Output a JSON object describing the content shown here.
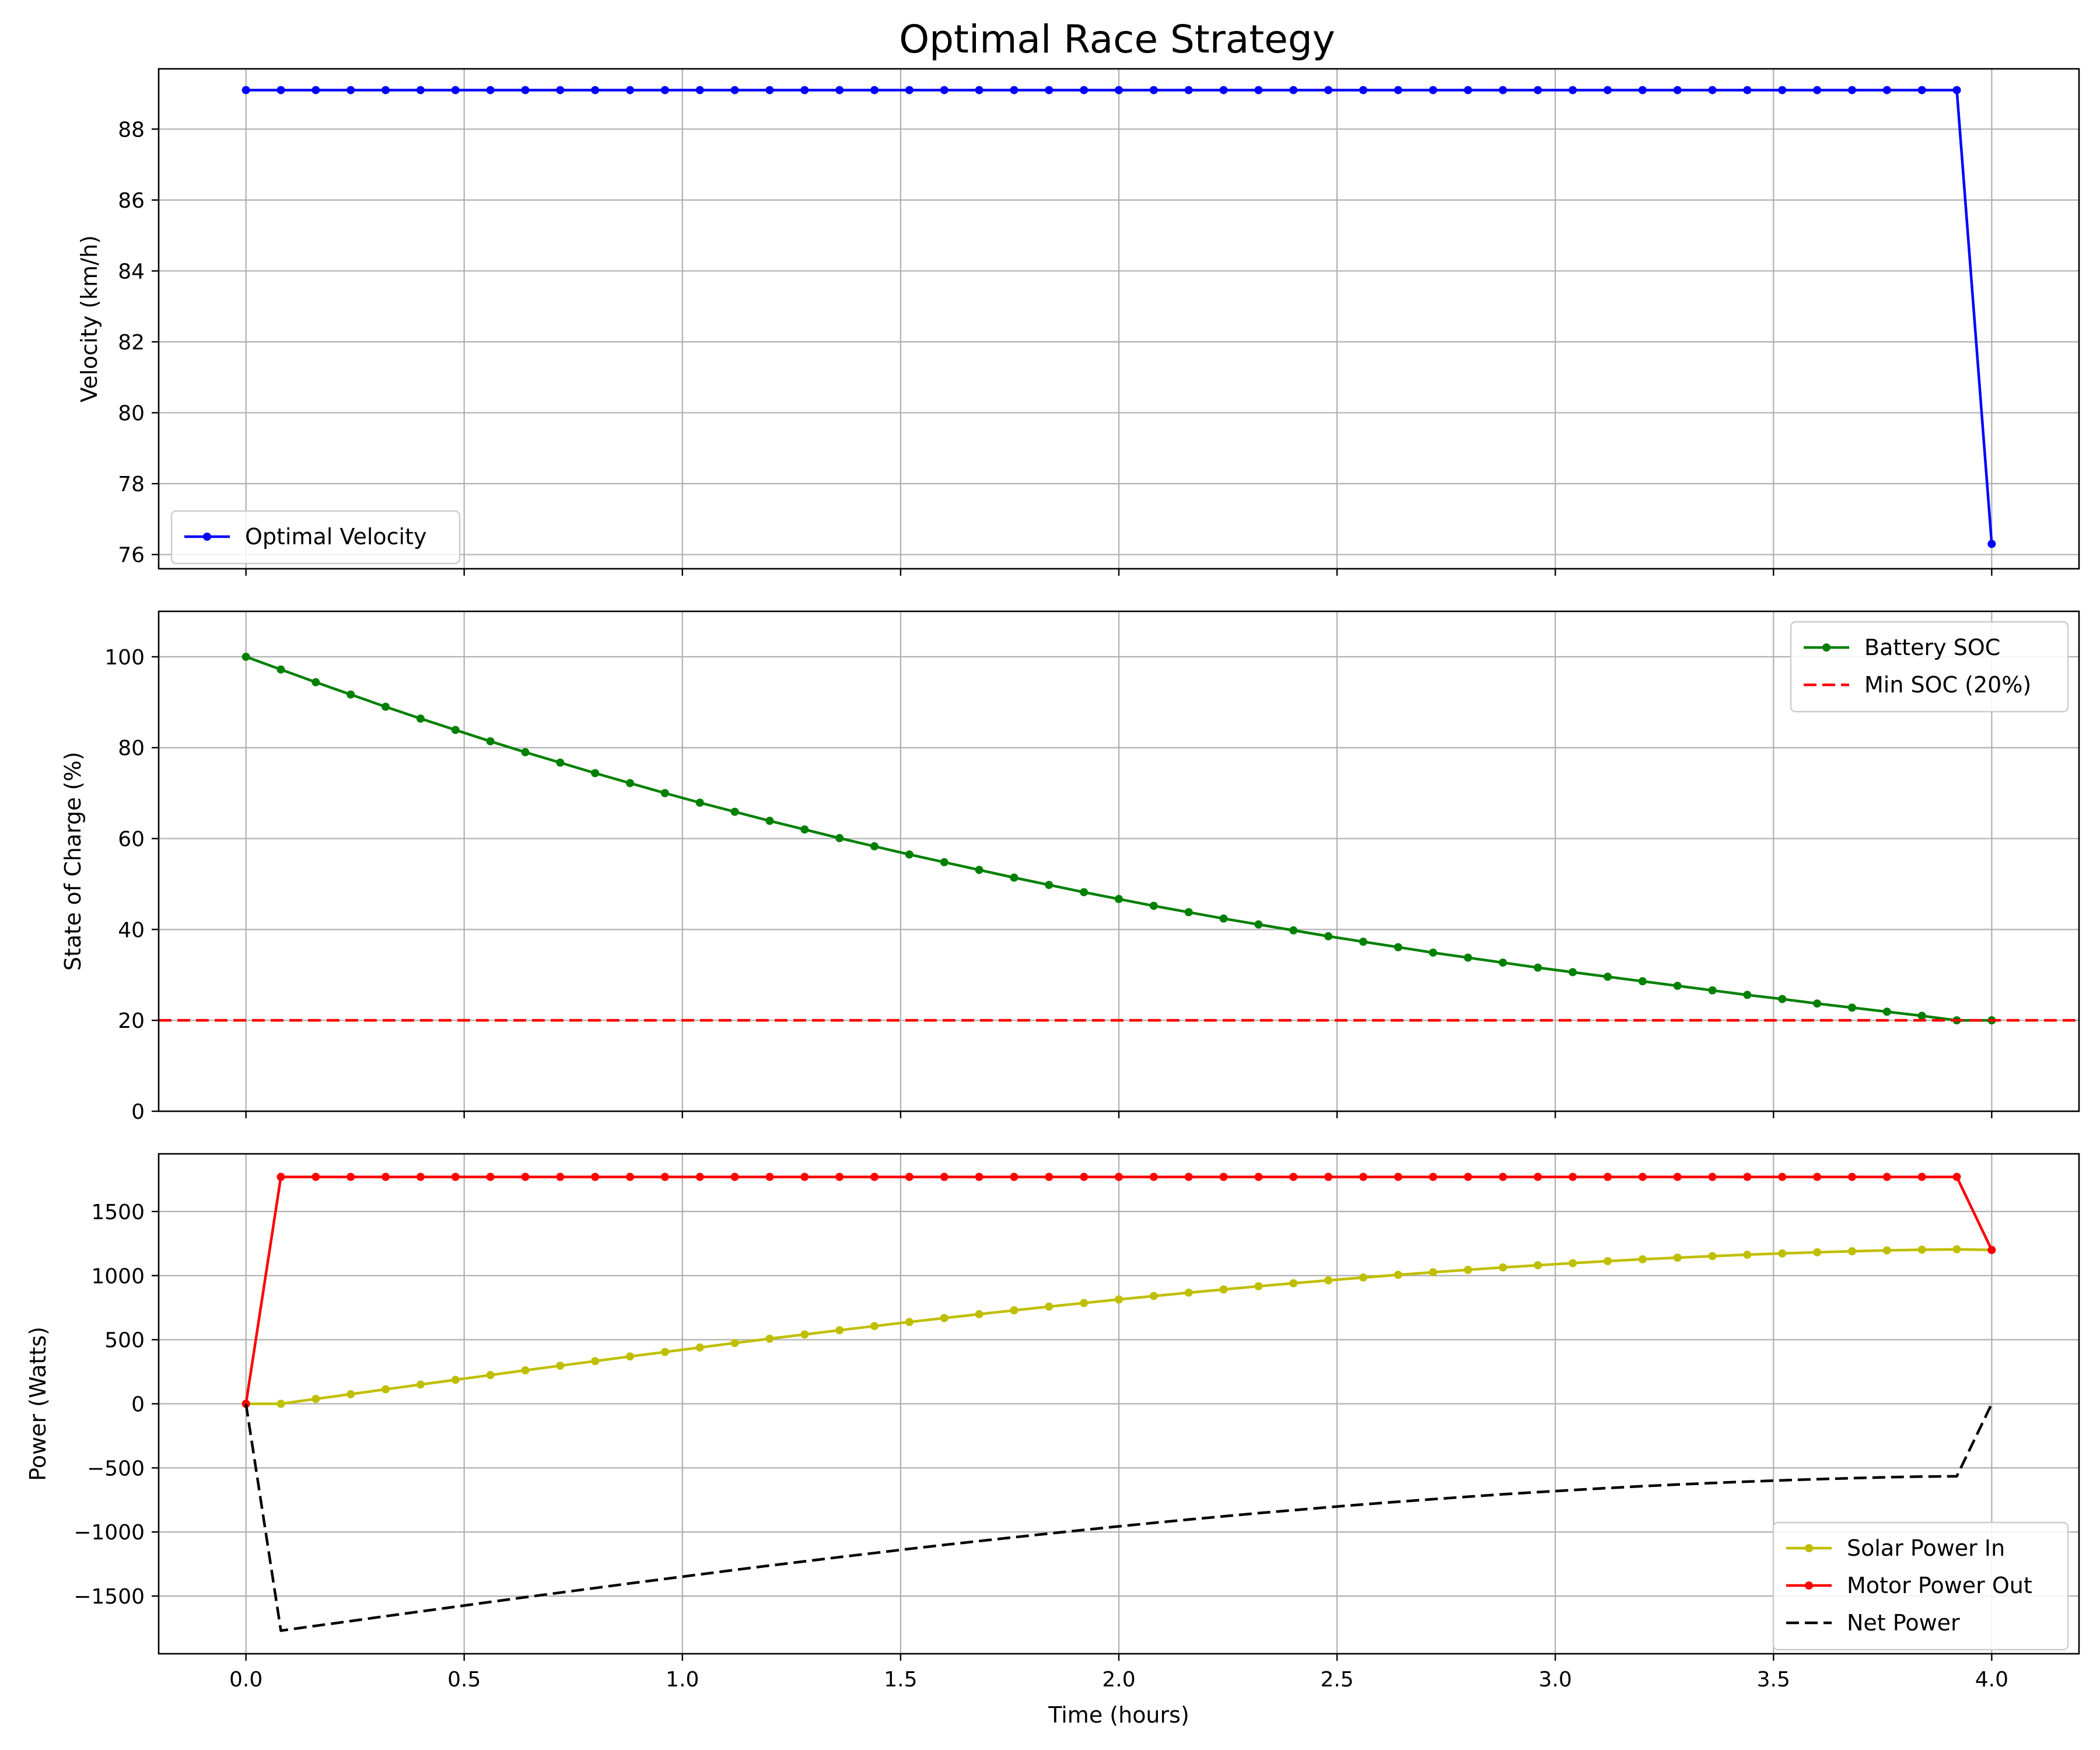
{
  "figure": {
    "title": "Optimal Race Strategy"
  },
  "chart_data": [
    {
      "type": "line",
      "xlabel": "",
      "ylabel": "Velocity (km/h)",
      "xlim": [
        -0.2,
        4.2
      ],
      "ylim": [
        75.6,
        89.7
      ],
      "xticks": [
        0.0,
        0.5,
        1.0,
        1.5,
        2.0,
        2.5,
        3.0,
        3.5,
        4.0
      ],
      "yticks": [
        76,
        78,
        80,
        82,
        84,
        86,
        88
      ],
      "ytick_labels": [
        "76",
        "78",
        "80",
        "82",
        "84",
        "86",
        "88"
      ],
      "grid": true,
      "legend_position": "lower-left",
      "legend_entries": [
        "Optimal Velocity"
      ],
      "series": [
        {
          "name": "Optimal Velocity",
          "color": "#0000ff",
          "marker": "dot",
          "style": "solid",
          "x": [
            0.0,
            0.08,
            0.16,
            0.24,
            0.32,
            0.4,
            0.48,
            0.56,
            0.64,
            0.72,
            0.8,
            0.88,
            0.96,
            1.04,
            1.12,
            1.2,
            1.28,
            1.36,
            1.44,
            1.52,
            1.6,
            1.68,
            1.76,
            1.84,
            1.92,
            2.0,
            2.08,
            2.16,
            2.24,
            2.32,
            2.4,
            2.48,
            2.56,
            2.64,
            2.72,
            2.8,
            2.88,
            2.96,
            3.04,
            3.12,
            3.2,
            3.28,
            3.36,
            3.44,
            3.52,
            3.6,
            3.68,
            3.76,
            3.84,
            3.92,
            4.0
          ],
          "y": [
            89.1,
            89.1,
            89.1,
            89.1,
            89.1,
            89.1,
            89.1,
            89.1,
            89.1,
            89.1,
            89.1,
            89.1,
            89.1,
            89.1,
            89.1,
            89.1,
            89.1,
            89.1,
            89.1,
            89.1,
            89.1,
            89.1,
            89.1,
            89.1,
            89.1,
            89.1,
            89.1,
            89.1,
            89.1,
            89.1,
            89.1,
            89.1,
            89.1,
            89.1,
            89.1,
            89.1,
            89.1,
            89.1,
            89.1,
            89.1,
            89.1,
            89.1,
            89.1,
            89.1,
            89.1,
            89.1,
            89.1,
            89.1,
            89.1,
            89.1,
            76.3
          ]
        }
      ]
    },
    {
      "type": "line",
      "xlabel": "",
      "ylabel": "State of Charge (%)",
      "xlim": [
        -0.2,
        4.2
      ],
      "ylim": [
        0,
        110
      ],
      "xticks": [
        0.0,
        0.5,
        1.0,
        1.5,
        2.0,
        2.5,
        3.0,
        3.5,
        4.0
      ],
      "yticks": [
        0,
        20,
        40,
        60,
        80,
        100
      ],
      "ytick_labels": [
        "0",
        "20",
        "40",
        "60",
        "80",
        "100"
      ],
      "grid": true,
      "legend_position": "upper-right",
      "legend_entries": [
        "Battery SOC",
        "Min SOC (20%)"
      ],
      "series": [
        {
          "name": "Battery SOC",
          "color": "#008000",
          "marker": "dot",
          "style": "solid",
          "x": [
            0.0,
            0.08,
            0.16,
            0.24,
            0.32,
            0.4,
            0.48,
            0.56,
            0.64,
            0.72,
            0.8,
            0.88,
            0.96,
            1.04,
            1.12,
            1.2,
            1.28,
            1.36,
            1.44,
            1.52,
            1.6,
            1.68,
            1.76,
            1.84,
            1.92,
            2.0,
            2.08,
            2.16,
            2.24,
            2.32,
            2.4,
            2.48,
            2.56,
            2.64,
            2.72,
            2.8,
            2.88,
            2.96,
            3.04,
            3.12,
            3.2,
            3.28,
            3.36,
            3.44,
            3.52,
            3.6,
            3.68,
            3.76,
            3.84,
            3.92,
            4.0
          ],
          "y": [
            100.0,
            97.2,
            94.4,
            91.7,
            89.0,
            86.4,
            83.9,
            81.4,
            79.0,
            76.7,
            74.4,
            72.2,
            70.0,
            67.9,
            65.9,
            63.9,
            62.0,
            60.1,
            58.3,
            56.5,
            54.8,
            53.1,
            51.4,
            49.8,
            48.2,
            46.7,
            45.2,
            43.8,
            42.4,
            41.1,
            39.8,
            38.5,
            37.3,
            36.1,
            34.9,
            33.8,
            32.7,
            31.6,
            30.6,
            29.6,
            28.6,
            27.6,
            26.6,
            25.6,
            24.7,
            23.7,
            22.8,
            21.9,
            21.0,
            20.0,
            20.0
          ]
        },
        {
          "name": "Min SOC (20%)",
          "color": "#ff0000",
          "marker": "none",
          "style": "dashed",
          "hline": 20
        }
      ]
    },
    {
      "type": "line",
      "xlabel": "Time (hours)",
      "ylabel": "Power (Watts)",
      "xlim": [
        -0.2,
        4.2
      ],
      "ylim": [
        -1950,
        1950
      ],
      "xticks": [
        0.0,
        0.5,
        1.0,
        1.5,
        2.0,
        2.5,
        3.0,
        3.5,
        4.0
      ],
      "xtick_labels": [
        "0.0",
        "0.5",
        "1.0",
        "1.5",
        "2.0",
        "2.5",
        "3.0",
        "3.5",
        "4.0"
      ],
      "yticks": [
        -1500,
        -1000,
        -500,
        0,
        500,
        1000,
        1500
      ],
      "ytick_labels": [
        "−1500",
        "−1000",
        "−500",
        "0",
        "500",
        "1000",
        "1500"
      ],
      "grid": true,
      "legend_position": "lower-right",
      "legend_entries": [
        "Solar Power In",
        "Motor Power Out",
        "Net Power"
      ],
      "series": [
        {
          "name": "Solar Power In",
          "color": "#bfbf00",
          "marker": "dot",
          "style": "solid",
          "x": [
            0.0,
            0.08,
            0.16,
            0.24,
            0.32,
            0.4,
            0.48,
            0.56,
            0.64,
            0.72,
            0.8,
            0.88,
            0.96,
            1.04,
            1.12,
            1.2,
            1.28,
            1.36,
            1.44,
            1.52,
            1.6,
            1.68,
            1.76,
            1.84,
            1.92,
            2.0,
            2.08,
            2.16,
            2.24,
            2.32,
            2.4,
            2.48,
            2.56,
            2.64,
            2.72,
            2.8,
            2.88,
            2.96,
            3.04,
            3.12,
            3.2,
            3.28,
            3.36,
            3.44,
            3.52,
            3.6,
            3.68,
            3.76,
            3.84,
            3.92,
            4.0
          ],
          "y": [
            0,
            0,
            38,
            75,
            113,
            150,
            187,
            224,
            261,
            297,
            333,
            369,
            404,
            439,
            474,
            508,
            541,
            574,
            606,
            638,
            669,
            699,
            729,
            758,
            786,
            814,
            841,
            867,
            892,
            917,
            940,
            963,
            985,
            1006,
            1026,
            1045,
            1064,
            1081,
            1097,
            1113,
            1127,
            1140,
            1152,
            1163,
            1173,
            1182,
            1190,
            1197,
            1202,
            1205,
            1200
          ]
        },
        {
          "name": "Motor Power Out",
          "color": "#ff0000",
          "marker": "dot",
          "style": "solid",
          "x": [
            0.0,
            0.08,
            0.16,
            0.24,
            0.32,
            0.4,
            0.48,
            0.56,
            0.64,
            0.72,
            0.8,
            0.88,
            0.96,
            1.04,
            1.12,
            1.2,
            1.28,
            1.36,
            1.44,
            1.52,
            1.6,
            1.68,
            1.76,
            1.84,
            1.92,
            2.0,
            2.08,
            2.16,
            2.24,
            2.32,
            2.4,
            2.48,
            2.56,
            2.64,
            2.72,
            2.8,
            2.88,
            2.96,
            3.04,
            3.12,
            3.2,
            3.28,
            3.36,
            3.44,
            3.52,
            3.6,
            3.68,
            3.76,
            3.84,
            3.92,
            4.0
          ],
          "y": [
            0,
            1770,
            1770,
            1770,
            1770,
            1770,
            1770,
            1770,
            1770,
            1770,
            1770,
            1770,
            1770,
            1770,
            1770,
            1770,
            1770,
            1770,
            1770,
            1770,
            1770,
            1770,
            1770,
            1770,
            1770,
            1770,
            1770,
            1770,
            1770,
            1770,
            1770,
            1770,
            1770,
            1770,
            1770,
            1770,
            1770,
            1770,
            1770,
            1770,
            1770,
            1770,
            1770,
            1770,
            1770,
            1770,
            1770,
            1770,
            1770,
            1770,
            1200
          ]
        },
        {
          "name": "Net Power",
          "color": "#000000",
          "marker": "none",
          "style": "dashed",
          "x": [
            0.0,
            0.08,
            0.16,
            0.24,
            0.32,
            0.4,
            0.48,
            0.56,
            0.64,
            0.72,
            0.8,
            0.88,
            0.96,
            1.04,
            1.12,
            1.2,
            1.28,
            1.36,
            1.44,
            1.52,
            1.6,
            1.68,
            1.76,
            1.84,
            1.92,
            2.0,
            2.08,
            2.16,
            2.24,
            2.32,
            2.4,
            2.48,
            2.56,
            2.64,
            2.72,
            2.8,
            2.88,
            2.96,
            3.04,
            3.12,
            3.2,
            3.28,
            3.36,
            3.44,
            3.52,
            3.6,
            3.68,
            3.76,
            3.84,
            3.92,
            4.0
          ],
          "y": [
            0,
            -1770,
            -1732,
            -1695,
            -1657,
            -1620,
            -1583,
            -1546,
            -1509,
            -1473,
            -1437,
            -1401,
            -1366,
            -1331,
            -1296,
            -1262,
            -1229,
            -1196,
            -1164,
            -1132,
            -1101,
            -1071,
            -1041,
            -1012,
            -984,
            -956,
            -929,
            -903,
            -878,
            -853,
            -830,
            -807,
            -785,
            -764,
            -744,
            -725,
            -706,
            -689,
            -673,
            -657,
            -643,
            -630,
            -618,
            -607,
            -597,
            -588,
            -580,
            -573,
            -568,
            -565,
            0
          ]
        }
      ]
    }
  ]
}
